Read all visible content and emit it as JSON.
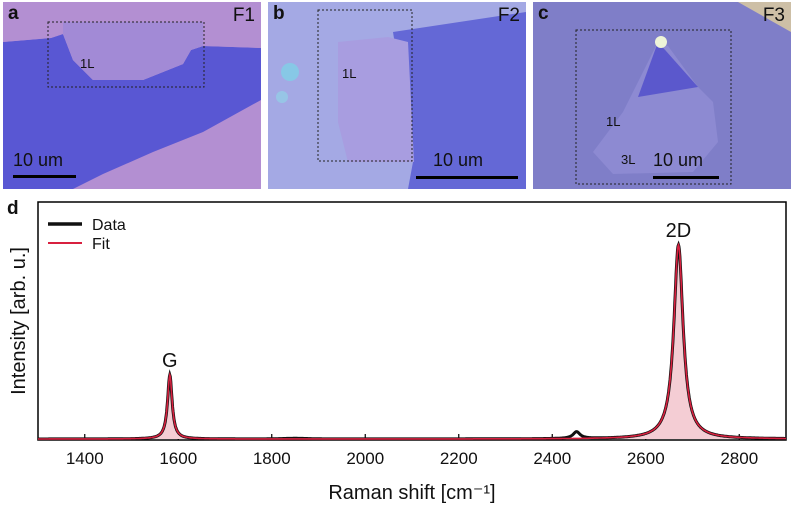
{
  "panels": [
    {
      "letter": "a",
      "flake": "F1",
      "layer_labels": [
        "1L"
      ],
      "scale_label": "10 um"
    },
    {
      "letter": "b",
      "flake": "F2",
      "layer_labels": [
        "1L"
      ],
      "scale_label": "10 um"
    },
    {
      "letter": "c",
      "flake": "F3",
      "layer_labels": [
        "1L",
        "3L"
      ],
      "scale_label": "10 um"
    }
  ],
  "colors": {
    "substrate": "#b08ed0",
    "multilayer": "#5656d2",
    "monolayer": "#a089d6",
    "fit": "#d8203f",
    "data": "#111111",
    "fill": "#f4cdd4"
  },
  "chart_data": {
    "panel_letter": "d",
    "type": "line",
    "title": "",
    "xlabel": "Raman shift [cm⁻¹]",
    "ylabel": "Intensity [arb. u.]",
    "xlim": [
      1300,
      2900
    ],
    "ylim": [
      0,
      1.0
    ],
    "xticks": [
      1400,
      1600,
      1800,
      2000,
      2200,
      2400,
      2600,
      2800
    ],
    "legend": {
      "position": "top-left",
      "entries": [
        "Data",
        "Fit"
      ]
    },
    "peaks": [
      {
        "label": "G",
        "center": 1582,
        "height": 0.33,
        "width": 6
      },
      {
        "label": "2D",
        "center": 2670,
        "height": 1.0,
        "width": 12
      },
      {
        "label": "",
        "center": 2452,
        "height": 0.035,
        "width": 9
      }
    ],
    "series": [
      {
        "name": "Data",
        "values": [
          [
            1300,
            0.0
          ],
          [
            1400,
            0.001
          ],
          [
            1560,
            0.005
          ],
          [
            1575,
            0.15
          ],
          [
            1582,
            0.33
          ],
          [
            1589,
            0.15
          ],
          [
            1605,
            0.005
          ],
          [
            1850,
            0.004
          ],
          [
            2200,
            0.004
          ],
          [
            2440,
            0.015
          ],
          [
            2452,
            0.035
          ],
          [
            2465,
            0.012
          ],
          [
            2600,
            0.02
          ],
          [
            2650,
            0.3
          ],
          [
            2670,
            1.0
          ],
          [
            2690,
            0.3
          ],
          [
            2740,
            0.02
          ],
          [
            2900,
            0.002
          ]
        ]
      },
      {
        "name": "Fit",
        "values": [
          [
            1300,
            0.0
          ],
          [
            1400,
            0.001
          ],
          [
            1560,
            0.005
          ],
          [
            1575,
            0.15
          ],
          [
            1582,
            0.33
          ],
          [
            1589,
            0.15
          ],
          [
            1605,
            0.005
          ],
          [
            1850,
            0.002
          ],
          [
            2200,
            0.003
          ],
          [
            2440,
            0.006
          ],
          [
            2452,
            0.007
          ],
          [
            2465,
            0.006
          ],
          [
            2600,
            0.02
          ],
          [
            2650,
            0.3
          ],
          [
            2670,
            1.0
          ],
          [
            2690,
            0.3
          ],
          [
            2740,
            0.02
          ],
          [
            2900,
            0.002
          ]
        ]
      }
    ]
  }
}
